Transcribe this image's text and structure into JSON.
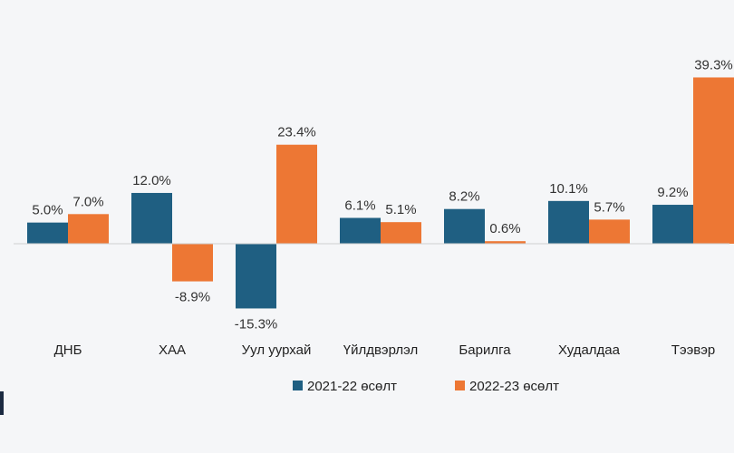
{
  "chart_data": {
    "type": "bar",
    "title": "",
    "xlabel": "",
    "ylabel": "",
    "categories": [
      "ДНБ",
      "ХАА",
      "Уул уурхай",
      "Үйлдвэрлэл",
      "Барилга",
      "Худалдаа",
      "Тээвэр"
    ],
    "series": [
      {
        "name": "2021-22 өсөлт",
        "color": "#1f5f82",
        "values": [
          5.0,
          12.0,
          -15.3,
          6.1,
          8.2,
          10.1,
          9.2
        ],
        "labels": [
          "5.0%",
          "12.0%",
          "-15.3%",
          "6.1%",
          "8.2%",
          "10.1%",
          "9.2%"
        ]
      },
      {
        "name": "2022-23 өсөлт",
        "color": "#ed7734",
        "values": [
          7.0,
          -8.9,
          23.4,
          5.1,
          0.6,
          5.7,
          39.3
        ],
        "labels": [
          "7.0%",
          "-8.9%",
          "23.4%",
          "5.1%",
          "0.6%",
          "5.7%",
          "39.3%"
        ]
      }
    ],
    "ylim": [
      -16,
      40
    ],
    "grid": false,
    "legend": "bottom"
  }
}
